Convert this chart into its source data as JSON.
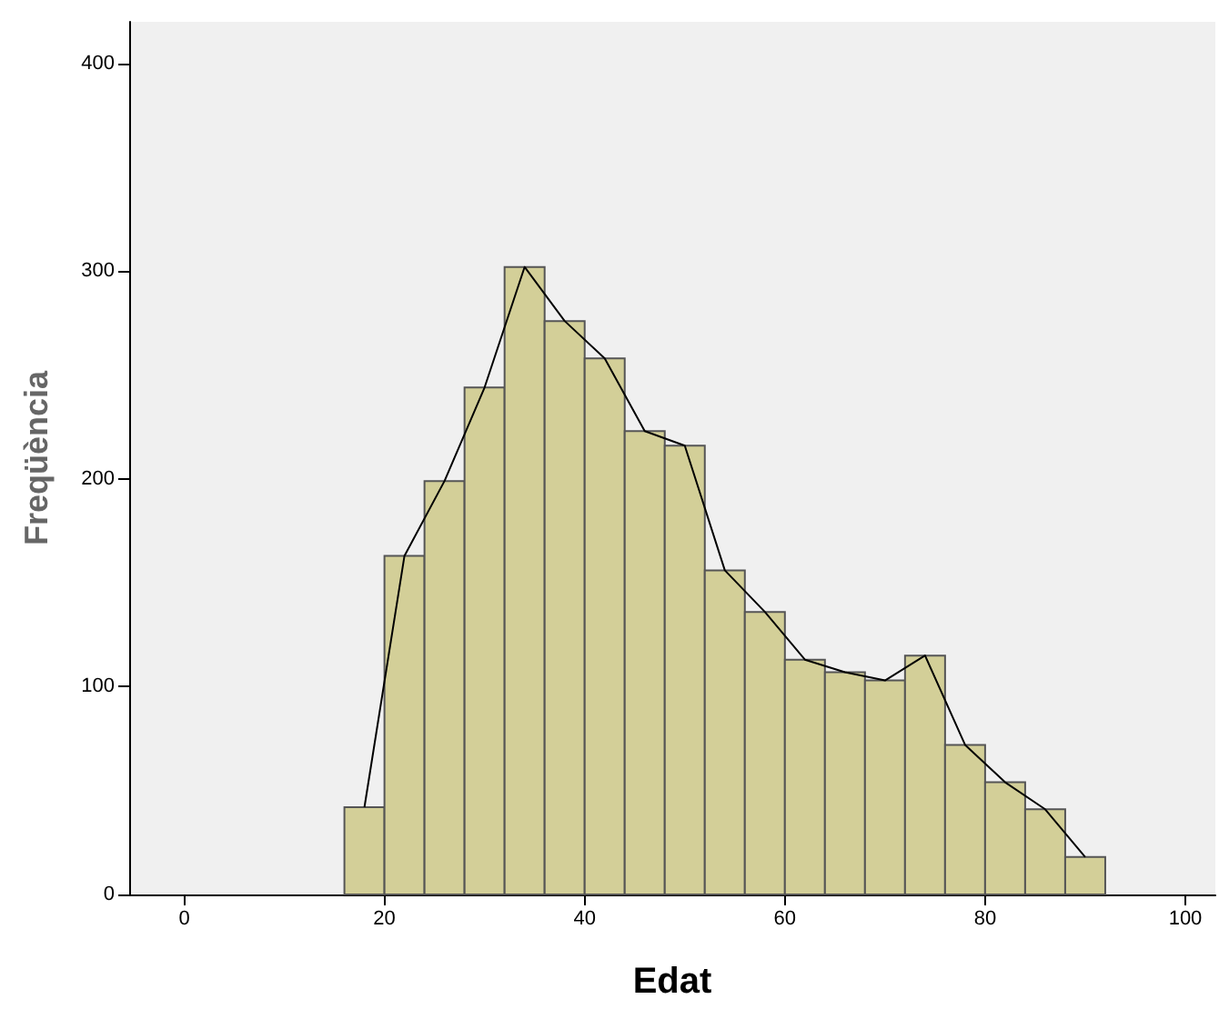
{
  "chart_data": {
    "type": "histogram",
    "xlabel": "Edat",
    "ylabel": "Freqüència",
    "bins": [
      16,
      20,
      24,
      28,
      32,
      36,
      40,
      44,
      48,
      52,
      56,
      60,
      64,
      68,
      72,
      76,
      80,
      84,
      88,
      92
    ],
    "series": [
      {
        "color": "#d3cf98",
        "values": [
          42,
          163,
          199,
          244,
          302,
          276,
          258,
          223,
          216,
          156,
          136,
          113,
          107,
          103,
          115,
          72,
          54,
          41,
          18
        ]
      },
      {
        "type": "line",
        "color": "#000000",
        "x": [
          18,
          22,
          26,
          30,
          34,
          38,
          42,
          46,
          50,
          54,
          58,
          62,
          66,
          70,
          74,
          78,
          82,
          86,
          90
        ],
        "values": [
          42,
          163,
          199,
          244,
          302,
          276,
          258,
          223,
          216,
          156,
          136,
          113,
          107,
          103,
          115,
          72,
          54,
          41,
          18
        ]
      }
    ],
    "xlim": [
      -5.5,
      103
    ],
    "xticks": [
      0,
      20,
      40,
      60,
      80,
      100
    ],
    "ylim": [
      0,
      420
    ],
    "yticks": [
      0,
      100,
      200,
      300,
      400
    ],
    "grid": false,
    "marker": "none",
    "line_style": "solid"
  }
}
